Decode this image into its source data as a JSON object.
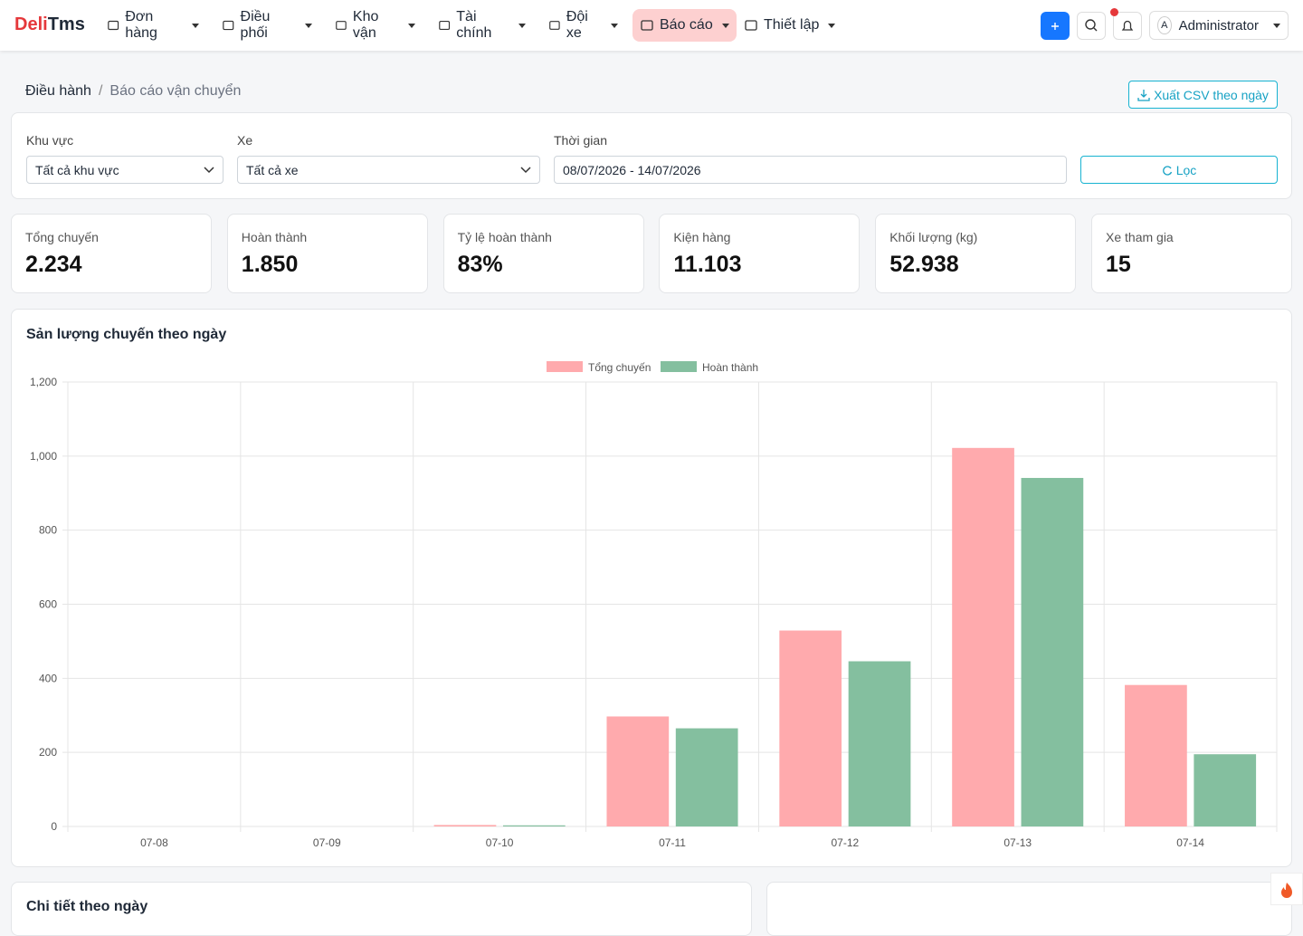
{
  "brand": {
    "part1": "Deli",
    "part2": "Tms"
  },
  "nav": [
    "Đơn hàng",
    "Điều phối",
    "Kho vận",
    "Tài chính",
    "Đội xe",
    "Báo cáo",
    "Thiết lập"
  ],
  "user": {
    "initial": "A",
    "name": "Administrator"
  },
  "breadcrumb": [
    "Điều hành",
    "Báo cáo vận chuyển"
  ],
  "export_button": "Xuất CSV theo ngày",
  "filters": {
    "region_label": "Khu vực",
    "region_value": "Tất cả khu vực",
    "vehicle_label": "Xe",
    "vehicle_value": "Tất cả xe",
    "time_label": "Thời gian",
    "time_value": "08/07/2026 - 14/07/2026",
    "filter_button": "Lọc"
  },
  "stats": [
    {
      "label": "Tổng chuyến",
      "value": "2.234"
    },
    {
      "label": "Hoàn thành",
      "value": "1.850"
    },
    {
      "label": "Tỷ lệ hoàn thành",
      "value": "83%"
    },
    {
      "label": "Kiện hàng",
      "value": "11.103"
    },
    {
      "label": "Khối lượng (kg)",
      "value": "52.938"
    },
    {
      "label": "Xe tham gia",
      "value": "15"
    }
  ],
  "bottom_card": {
    "title": "Chi tiết theo ngày"
  },
  "chart_data": {
    "type": "bar",
    "title": "Sản lượng chuyến theo ngày",
    "categories": [
      "07-08",
      "07-09",
      "07-10",
      "07-11",
      "07-12",
      "07-13",
      "07-14"
    ],
    "series": [
      {
        "name": "Tổng chuyến",
        "color": "#ffaaad",
        "values": [
          0,
          0,
          4,
          297,
          529,
          1022,
          382
        ]
      },
      {
        "name": "Hoàn thành",
        "color": "#84bf9f",
        "values": [
          0,
          0,
          3,
          265,
          446,
          941,
          195
        ]
      }
    ],
    "ylim": [
      0,
      1200
    ],
    "yticks": [
      0,
      200,
      400,
      600,
      800,
      {
        "value": 1000,
        "label": "1,000"
      },
      {
        "value": 1200,
        "label": "1,200"
      }
    ],
    "grid": true,
    "legend": "top"
  }
}
